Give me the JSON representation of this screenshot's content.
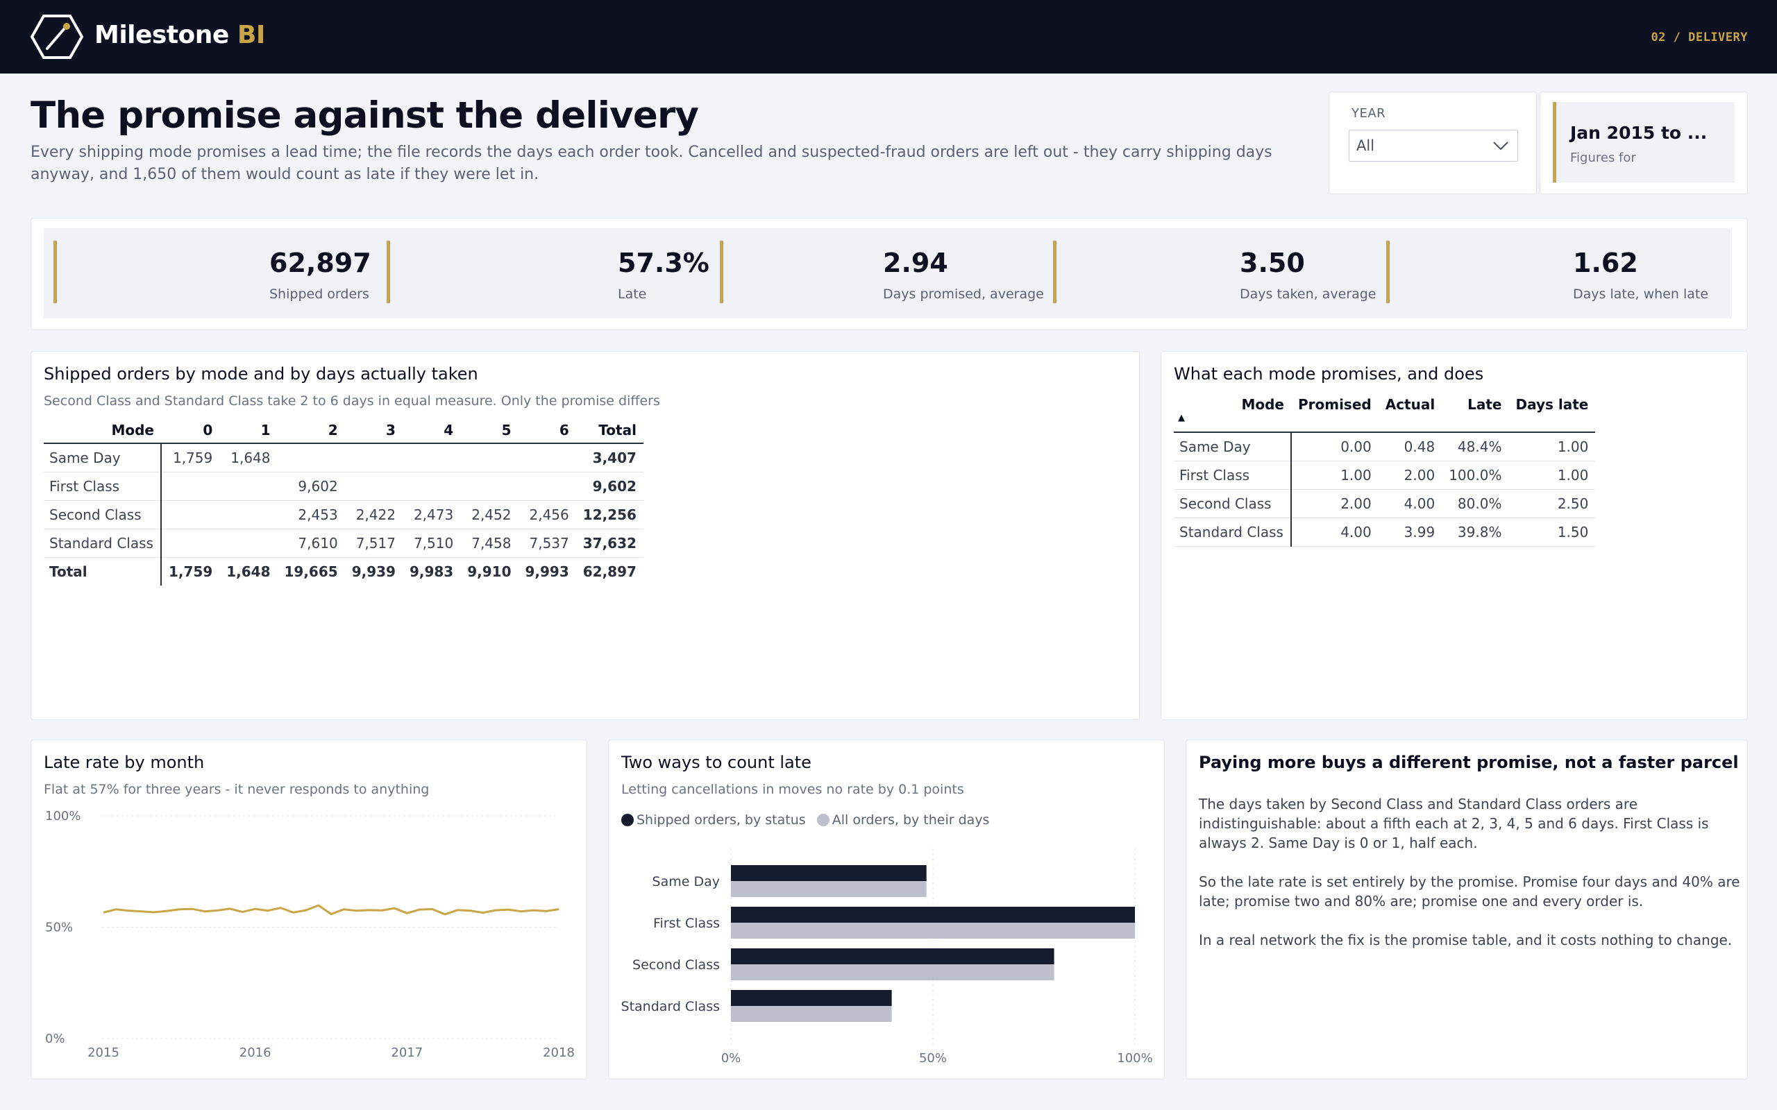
{
  "app": {
    "name": "Milestone",
    "name_accent": "BI",
    "breadcrumb": "02 / DELIVERY"
  },
  "page": {
    "title": "The promise against the delivery",
    "subtitle": "Every shipping mode promises a lead time; the file records the days each order took. Cancelled and suspected-fraud orders are left out - they carry shipping days anyway, and 1,650 of them would count as late if they were let in."
  },
  "filters": {
    "year_label": "YEAR",
    "year_value": "All",
    "period_value": "Jan 2015 to ...",
    "period_label": "Figures for"
  },
  "kpis": [
    {
      "value": "62,897",
      "label": "Shipped orders"
    },
    {
      "value": "57.3%",
      "label": "Late"
    },
    {
      "value": "2.94",
      "label": "Days promised, average"
    },
    {
      "value": "3.50",
      "label": "Days taken, average"
    },
    {
      "value": "1.62",
      "label": "Days late, when late"
    }
  ],
  "matrix": {
    "title": "Shipped orders by mode and by days actually taken",
    "subtitle": "Second Class and Standard Class take 2 to 6 days in equal measure. Only the promise differs",
    "columns": [
      "Mode",
      "0",
      "1",
      "2",
      "3",
      "4",
      "5",
      "6",
      "Total"
    ],
    "rows": [
      [
        "Same Day",
        "1,759",
        "1,648",
        "",
        "",
        "",
        "",
        "",
        "3,407"
      ],
      [
        "First Class",
        "",
        "",
        "9,602",
        "",
        "",
        "",
        "",
        "9,602"
      ],
      [
        "Second Class",
        "",
        "",
        "2,453",
        "2,422",
        "2,473",
        "2,452",
        "2,456",
        "12,256"
      ],
      [
        "Standard Class",
        "",
        "",
        "7,610",
        "7,517",
        "7,510",
        "7,458",
        "7,537",
        "37,632"
      ]
    ],
    "total_row": [
      "Total",
      "1,759",
      "1,648",
      "19,665",
      "9,939",
      "9,983",
      "9,910",
      "9,993",
      "62,897"
    ]
  },
  "modes": {
    "title": "What each mode promises, and does",
    "sort_indicator": "▲",
    "columns": [
      "Mode",
      "Promised",
      "Actual",
      "Late",
      "Days late"
    ],
    "rows": [
      [
        "Same Day",
        "0.00",
        "0.48",
        "48.4%",
        "1.00"
      ],
      [
        "First Class",
        "1.00",
        "2.00",
        "100.0%",
        "1.00"
      ],
      [
        "Second Class",
        "2.00",
        "4.00",
        "80.0%",
        "2.50"
      ],
      [
        "Standard Class",
        "4.00",
        "3.99",
        "39.8%",
        "1.50"
      ]
    ]
  },
  "late_chart": {
    "title": "Late rate by month",
    "subtitle": "Flat at 57% for three years - it never responds to anything"
  },
  "ways_chart": {
    "title": "Two ways to count late",
    "subtitle": "Letting cancellations in moves no rate by 0.1 points"
  },
  "chart_data": [
    {
      "type": "line",
      "title": "Late rate by month",
      "subtitle": "Flat at 57% for three years - it never responds to anything",
      "ylim": [
        0,
        100
      ],
      "y_ticks": [
        "0%",
        "50%",
        "100%"
      ],
      "x_ticks": [
        "2015",
        "2016",
        "2017",
        "2018"
      ],
      "xlim": [
        2015,
        2018
      ],
      "color": "#c9a546",
      "series": [
        {
          "x": [
            2015.0,
            2015.083,
            2015.167,
            2015.25,
            2015.333,
            2015.417,
            2015.5,
            2015.583,
            2015.667,
            2015.75,
            2015.833,
            2015.917,
            2016.0,
            2016.083,
            2016.167,
            2016.25,
            2016.333,
            2016.417,
            2016.5,
            2016.583,
            2016.667,
            2016.75,
            2016.833,
            2016.917,
            2017.0,
            2017.083,
            2017.167,
            2017.25,
            2017.333,
            2017.417,
            2017.5,
            2017.583,
            2017.667,
            2017.75,
            2017.833,
            2017.917,
            2018.0
          ],
          "y": [
            56.6,
            58.0,
            57.4,
            57.1,
            56.7,
            57.3,
            58.0,
            58.2,
            57.1,
            57.5,
            58.3,
            56.9,
            58.2,
            57.4,
            58.7,
            56.6,
            57.6,
            59.8,
            55.9,
            58.0,
            57.4,
            57.7,
            57.5,
            58.5,
            56.3,
            57.9,
            58.1,
            55.8,
            57.7,
            57.4,
            56.5,
            57.6,
            57.9,
            57.1,
            57.6,
            57.2,
            58.1
          ]
        }
      ]
    },
    {
      "type": "bar",
      "orientation": "horizontal",
      "title": "Two ways to count late",
      "subtitle": "Letting cancellations in moves no rate by 0.1 points",
      "categories": [
        "Same Day",
        "First Class",
        "Second Class",
        "Standard Class"
      ],
      "xlim": [
        0,
        100
      ],
      "x_ticks": [
        "0%",
        "50%",
        "100%"
      ],
      "legend": "top-left",
      "series": [
        {
          "name": "Shipped orders, by status",
          "color": "#161b2e",
          "values": [
            48.4,
            100.0,
            80.0,
            39.8
          ]
        },
        {
          "name": "All orders, by their days",
          "color": "#bdbfcf",
          "values": [
            48.4,
            100.0,
            80.0,
            39.8
          ]
        }
      ]
    }
  ],
  "note": {
    "title": "Paying more buys a different promise, not a faster parcel",
    "paragraphs": [
      "The days taken by Second Class and Standard Class orders are indistinguishable: about a fifth each at 2, 3, 4, 5 and 6 days. First Class is always 2. Same Day is 0 or 1, half each.",
      "So the late rate is set entirely by the promise. Promise four days and 40% are late; promise two and 80% are; promise one and every order is.",
      "In a real network the fix is the promise table, and it costs nothing to change."
    ]
  }
}
